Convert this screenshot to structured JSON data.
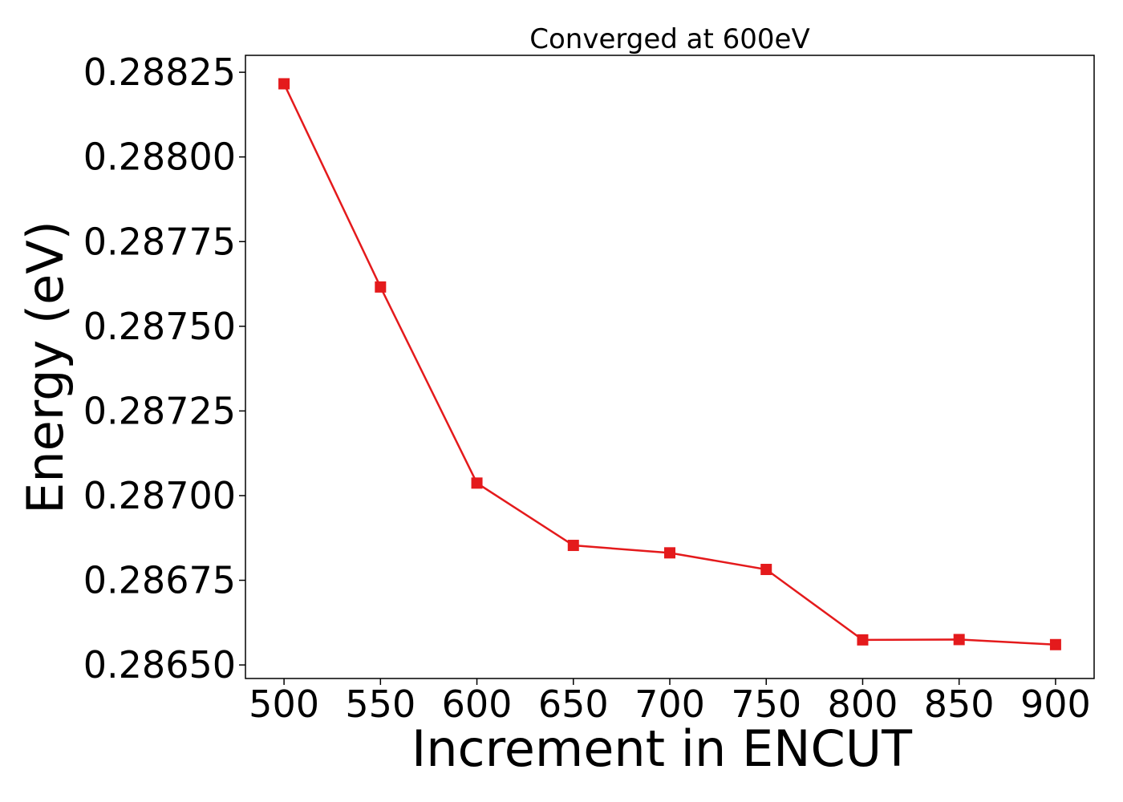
{
  "chart_data": {
    "type": "line",
    "title": "Converged at 600eV",
    "xlabel": "Increment in ENCUT",
    "ylabel": "Energy (eV)",
    "x": [
      500,
      550,
      600,
      650,
      700,
      750,
      800,
      850,
      900
    ],
    "series": [
      {
        "color": "#e41a1c",
        "marker": "square",
        "values": [
          0.288216,
          0.287616,
          0.287037,
          0.286853,
          0.286831,
          0.286782,
          0.286574,
          0.286575,
          0.28656
        ]
      }
    ],
    "xlim": [
      480,
      920
    ],
    "ylim": [
      0.28646,
      0.2883
    ],
    "xticks": [
      "500",
      "550",
      "600",
      "650",
      "700",
      "750",
      "800",
      "850",
      "900"
    ],
    "yticks": [
      "0.28650",
      "0.28675",
      "0.28700",
      "0.28725",
      "0.28750",
      "0.28775",
      "0.28800",
      "0.28825"
    ],
    "grid": false
  }
}
